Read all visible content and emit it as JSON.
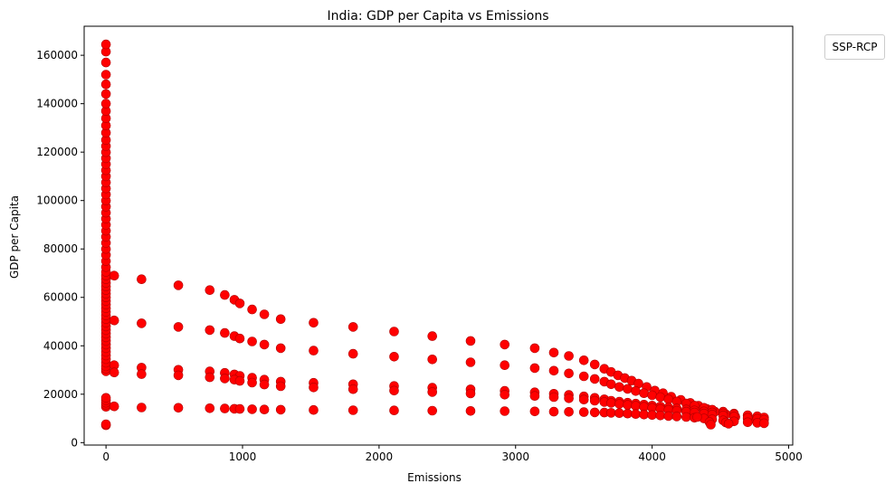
{
  "chart_data": {
    "type": "scatter",
    "title": "India: GDP per Capita vs Emissions",
    "xlabel": "Emissions",
    "ylabel": "GDP per Capita",
    "xlim": [
      -160,
      5030
    ],
    "ylim": [
      -1000,
      172000
    ],
    "xticks": [
      0,
      1000,
      2000,
      3000,
      4000,
      5000
    ],
    "yticks": [
      0,
      20000,
      40000,
      60000,
      80000,
      100000,
      120000,
      140000,
      160000
    ],
    "grid": false,
    "legend": {
      "title": "SSP-RCP",
      "placement": "outside-top-right"
    },
    "marker_color": "#ff0000",
    "points": [
      [
        0,
        7200
      ],
      [
        0,
        7600
      ],
      [
        0,
        14800
      ],
      [
        0,
        15600
      ],
      [
        0,
        16500
      ],
      [
        0,
        17500
      ],
      [
        0,
        18500
      ],
      [
        0,
        29500
      ],
      [
        0,
        30500
      ],
      [
        0,
        31500
      ],
      [
        0,
        33000
      ],
      [
        0,
        34500
      ],
      [
        0,
        36000
      ],
      [
        0,
        37500
      ],
      [
        0,
        39000
      ],
      [
        0,
        40500
      ],
      [
        0,
        42000
      ],
      [
        0,
        43500
      ],
      [
        0,
        45000
      ],
      [
        0,
        46500
      ],
      [
        0,
        48000
      ],
      [
        0,
        49500
      ],
      [
        0,
        51000
      ],
      [
        0,
        52500
      ],
      [
        0,
        54000
      ],
      [
        0,
        55500
      ],
      [
        0,
        57000
      ],
      [
        0,
        58500
      ],
      [
        0,
        60000
      ],
      [
        0,
        61500
      ],
      [
        0,
        63000
      ],
      [
        0,
        64500
      ],
      [
        0,
        66000
      ],
      [
        0,
        67500
      ],
      [
        0,
        69000
      ],
      [
        0,
        70500
      ],
      [
        0,
        72500
      ],
      [
        0,
        75000
      ],
      [
        0,
        77500
      ],
      [
        0,
        80000
      ],
      [
        0,
        82500
      ],
      [
        0,
        85000
      ],
      [
        0,
        87500
      ],
      [
        0,
        90000
      ],
      [
        0,
        92500
      ],
      [
        0,
        95000
      ],
      [
        0,
        97500
      ],
      [
        0,
        100000
      ],
      [
        0,
        102500
      ],
      [
        0,
        105000
      ],
      [
        0,
        107500
      ],
      [
        0,
        110000
      ],
      [
        0,
        112500
      ],
      [
        0,
        115000
      ],
      [
        0,
        117500
      ],
      [
        0,
        120000
      ],
      [
        0,
        122500
      ],
      [
        0,
        125000
      ],
      [
        0,
        128000
      ],
      [
        0,
        131000
      ],
      [
        0,
        134000
      ],
      [
        0,
        137000
      ],
      [
        0,
        140000
      ],
      [
        0,
        144000
      ],
      [
        0,
        148000
      ],
      [
        0,
        152000
      ],
      [
        0,
        157000
      ],
      [
        0,
        161500
      ],
      [
        0,
        164500
      ],
      [
        60,
        69000
      ],
      [
        60,
        50500
      ],
      [
        60,
        32000
      ],
      [
        60,
        29000
      ],
      [
        60,
        15000
      ],
      [
        260,
        67500
      ],
      [
        530,
        65000
      ],
      [
        760,
        63000
      ],
      [
        870,
        61000
      ],
      [
        940,
        59000
      ],
      [
        980,
        57500
      ],
      [
        1070,
        55000
      ],
      [
        1160,
        53000
      ],
      [
        1280,
        51000
      ],
      [
        1520,
        49500
      ],
      [
        1810,
        47800
      ],
      [
        2110,
        45900
      ],
      [
        2390,
        44000
      ],
      [
        2670,
        42000
      ],
      [
        2920,
        40500
      ],
      [
        3140,
        39000
      ],
      [
        3280,
        37200
      ],
      [
        3390,
        35800
      ],
      [
        3500,
        34000
      ],
      [
        3580,
        32300
      ],
      [
        3650,
        30500
      ],
      [
        3700,
        29200
      ],
      [
        3750,
        27800
      ],
      [
        3800,
        26700
      ],
      [
        3850,
        25600
      ],
      [
        3900,
        24400
      ],
      [
        3960,
        23000
      ],
      [
        4020,
        21500
      ],
      [
        4080,
        20400
      ],
      [
        4140,
        19000
      ],
      [
        4210,
        17700
      ],
      [
        4280,
        16400
      ],
      [
        4340,
        15200
      ],
      [
        4400,
        13900
      ],
      [
        4460,
        12800
      ],
      [
        4540,
        11700
      ],
      [
        4610,
        10700
      ],
      [
        4700,
        9900
      ],
      [
        4760,
        9300
      ],
      [
        4810,
        8900
      ],
      [
        260,
        49300
      ],
      [
        530,
        47800
      ],
      [
        760,
        46500
      ],
      [
        870,
        45300
      ],
      [
        940,
        44000
      ],
      [
        980,
        43000
      ],
      [
        1070,
        41800
      ],
      [
        1160,
        40500
      ],
      [
        1280,
        39000
      ],
      [
        1520,
        38000
      ],
      [
        1810,
        36700
      ],
      [
        2110,
        35500
      ],
      [
        2390,
        34400
      ],
      [
        2670,
        33200
      ],
      [
        2920,
        32000
      ],
      [
        3140,
        30800
      ],
      [
        3280,
        29700
      ],
      [
        3390,
        28600
      ],
      [
        3500,
        27400
      ],
      [
        3580,
        26300
      ],
      [
        3650,
        25200
      ],
      [
        3700,
        24100
      ],
      [
        3760,
        23000
      ],
      [
        3820,
        22200
      ],
      [
        3880,
        21300
      ],
      [
        3940,
        20400
      ],
      [
        4000,
        19600
      ],
      [
        4060,
        18800
      ],
      [
        4120,
        17900
      ],
      [
        4180,
        17000
      ],
      [
        4250,
        16200
      ],
      [
        4310,
        15300
      ],
      [
        4380,
        14400
      ],
      [
        4440,
        13600
      ],
      [
        4520,
        12800
      ],
      [
        4600,
        12000
      ],
      [
        4700,
        11200
      ],
      [
        4770,
        10500
      ],
      [
        4820,
        9800
      ],
      [
        260,
        31000
      ],
      [
        530,
        30100
      ],
      [
        760,
        29400
      ],
      [
        870,
        28800
      ],
      [
        940,
        28200
      ],
      [
        980,
        27600
      ],
      [
        1070,
        26800
      ],
      [
        1160,
        26000
      ],
      [
        1280,
        25200
      ],
      [
        1520,
        24700
      ],
      [
        1810,
        24100
      ],
      [
        2110,
        23400
      ],
      [
        2390,
        22700
      ],
      [
        2670,
        22000
      ],
      [
        2920,
        21400
      ],
      [
        3140,
        20800
      ],
      [
        3280,
        20200
      ],
      [
        3390,
        19700
      ],
      [
        3500,
        19100
      ],
      [
        3580,
        18500
      ],
      [
        3650,
        17900
      ],
      [
        3700,
        17300
      ],
      [
        3760,
        16900
      ],
      [
        3820,
        16500
      ],
      [
        3880,
        16100
      ],
      [
        3940,
        15700
      ],
      [
        4000,
        15300
      ],
      [
        4060,
        14900
      ],
      [
        4120,
        14500
      ],
      [
        4180,
        14100
      ],
      [
        4250,
        13700
      ],
      [
        4310,
        13300
      ],
      [
        4380,
        12900
      ],
      [
        4440,
        12500
      ],
      [
        4520,
        12100
      ],
      [
        4600,
        11700
      ],
      [
        4700,
        11300
      ],
      [
        4770,
        10900
      ],
      [
        4820,
        10400
      ],
      [
        260,
        28300
      ],
      [
        530,
        27800
      ],
      [
        760,
        27000
      ],
      [
        870,
        26500
      ],
      [
        940,
        26000
      ],
      [
        980,
        25500
      ],
      [
        1070,
        24800
      ],
      [
        1160,
        24000
      ],
      [
        1280,
        23300
      ],
      [
        1520,
        22800
      ],
      [
        1810,
        22100
      ],
      [
        2110,
        21500
      ],
      [
        2390,
        20900
      ],
      [
        2670,
        20300
      ],
      [
        2920,
        19800
      ],
      [
        3140,
        19300
      ],
      [
        3280,
        18800
      ],
      [
        3390,
        18300
      ],
      [
        3500,
        17800
      ],
      [
        3580,
        17300
      ],
      [
        3650,
        16800
      ],
      [
        3700,
        16400
      ],
      [
        3760,
        16000
      ],
      [
        3820,
        15600
      ],
      [
        3880,
        15200
      ],
      [
        3940,
        14800
      ],
      [
        4000,
        14400
      ],
      [
        4060,
        14000
      ],
      [
        4120,
        13600
      ],
      [
        4180,
        13200
      ],
      [
        4250,
        12800
      ],
      [
        4310,
        12400
      ],
      [
        4380,
        12000
      ],
      [
        4440,
        11600
      ],
      [
        4520,
        11200
      ],
      [
        4600,
        10800
      ],
      [
        4700,
        10300
      ],
      [
        4770,
        9900
      ],
      [
        4820,
        9500
      ],
      [
        260,
        14500
      ],
      [
        530,
        14400
      ],
      [
        760,
        14200
      ],
      [
        870,
        14100
      ],
      [
        940,
        14000
      ],
      [
        980,
        13900
      ],
      [
        1070,
        13800
      ],
      [
        1160,
        13700
      ],
      [
        1280,
        13600
      ],
      [
        1520,
        13500
      ],
      [
        1810,
        13400
      ],
      [
        2110,
        13300
      ],
      [
        2390,
        13200
      ],
      [
        2670,
        13100
      ],
      [
        2920,
        13000
      ],
      [
        3140,
        12900
      ],
      [
        3280,
        12800
      ],
      [
        3390,
        12700
      ],
      [
        3500,
        12600
      ],
      [
        3580,
        12500
      ],
      [
        3650,
        12400
      ],
      [
        3700,
        12300
      ],
      [
        3760,
        12200
      ],
      [
        3820,
        12000
      ],
      [
        3880,
        11800
      ],
      [
        3940,
        11600
      ],
      [
        4000,
        11400
      ],
      [
        4060,
        11200
      ],
      [
        4120,
        11000
      ],
      [
        4180,
        10800
      ],
      [
        4250,
        10600
      ],
      [
        4310,
        10300
      ],
      [
        4380,
        10000
      ],
      [
        4440,
        9600
      ],
      [
        4520,
        9200
      ],
      [
        4600,
        8800
      ],
      [
        4700,
        8400
      ],
      [
        4770,
        8200
      ],
      [
        4820,
        8000
      ],
      [
        4330,
        10600
      ],
      [
        4420,
        8500
      ],
      [
        4430,
        7400
      ],
      [
        4540,
        8300
      ],
      [
        4560,
        7800
      ]
    ]
  }
}
